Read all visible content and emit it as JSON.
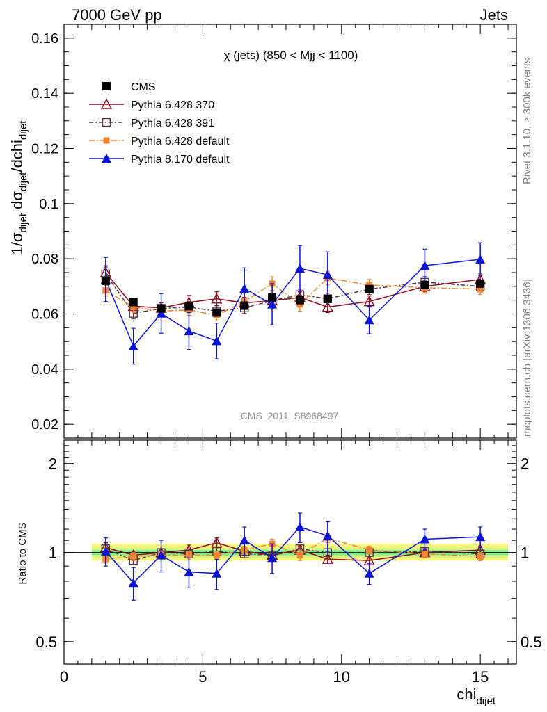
{
  "header": {
    "energy_label": "7000 GeV pp",
    "process_label": "Jets",
    "side_rivet": "Rivet 3.1.10, ≥ 300k events",
    "side_mcplots": "mcplots.cern.ch [arXiv:1306.3436]"
  },
  "chart_data": [
    {
      "type": "line",
      "panel": "main",
      "title": "χ (jets) (850 < Mjj < 1100)",
      "watermark": "CMS_2011_S8968497",
      "ylabel": {
        "main": "1/σ",
        "sub1": "dijet",
        "mid": " dσ",
        "sub2": "dijet",
        "mid2": "/dchi",
        "sub3": "dijet"
      },
      "xlim": [
        0,
        16.3
      ],
      "ylim": [
        0.015,
        0.165
      ],
      "yticks": [
        0.02,
        0.04,
        0.06,
        0.08,
        0.1,
        0.12,
        0.14,
        0.16
      ],
      "ytick_labels": [
        "0.02",
        "0.04",
        "0.06",
        "0.08",
        "0.1",
        "0.12",
        "0.14",
        "0.16"
      ],
      "x": [
        1.5,
        2.5,
        3.5,
        4.5,
        5.5,
        6.5,
        7.5,
        8.5,
        9.5,
        11,
        13,
        15
      ],
      "series": [
        {
          "name": "CMS",
          "color": "#000000",
          "marker": "square-filled",
          "dash": "none",
          "values": [
            0.072,
            0.0643,
            0.062,
            0.0628,
            0.0605,
            0.063,
            0.066,
            0.065,
            0.0655,
            0.069,
            0.0705,
            0.071
          ],
          "errors": [
            0.001,
            0.001,
            0.001,
            0.001,
            0.001,
            0.001,
            0.001,
            0.001,
            0.001,
            0.001,
            0.001,
            0.001
          ]
        },
        {
          "name": "Pythia 6.428 370",
          "color": "#8b0a1a",
          "marker": "triangle-open",
          "dash": "none",
          "values": [
            0.075,
            0.0628,
            0.0622,
            0.0642,
            0.0655,
            0.064,
            0.0648,
            0.066,
            0.0625,
            0.0645,
            0.07,
            0.0725
          ],
          "errors": [
            0.0025,
            0.002,
            0.002,
            0.0025,
            0.0025,
            0.002,
            0.002,
            0.002,
            0.002,
            0.002,
            0.002,
            0.002
          ]
        },
        {
          "name": "Pythia 6.428 391",
          "color": "#5a3040",
          "marker": "square-open",
          "dash": "6,3,2,3",
          "values": [
            0.0745,
            0.0602,
            0.062,
            0.0625,
            0.061,
            0.0622,
            0.0648,
            0.067,
            0.0655,
            0.069,
            0.0715,
            0.07
          ],
          "errors": [
            0.0025,
            0.002,
            0.002,
            0.002,
            0.002,
            0.002,
            0.002,
            0.002,
            0.002,
            0.002,
            0.002,
            0.002
          ]
        },
        {
          "name": "Pythia 6.428 default",
          "color": "#f58432",
          "marker": "square-filled-small",
          "dash": "8,3,2,3",
          "values": [
            0.0685,
            0.0625,
            0.061,
            0.0615,
            0.0595,
            0.0645,
            0.071,
            0.0635,
            0.073,
            0.0705,
            0.0695,
            0.069
          ],
          "errors": [
            0.002,
            0.002,
            0.002,
            0.002,
            0.002,
            0.002,
            0.0025,
            0.0025,
            0.0025,
            0.002,
            0.002,
            0.002
          ]
        },
        {
          "name": "Pythia 8.170 default",
          "color": "#0a14d6",
          "marker": "triangle-filled",
          "dash": "none",
          "values": [
            0.0725,
            0.0483,
            0.0602,
            0.0538,
            0.0502,
            0.0692,
            0.0635,
            0.0765,
            0.0742,
            0.0578,
            0.0775,
            0.0798
          ],
          "errors": [
            0.008,
            0.0065,
            0.0072,
            0.0067,
            0.0065,
            0.0075,
            0.0075,
            0.0083,
            0.0083,
            0.005,
            0.006,
            0.006
          ]
        }
      ]
    },
    {
      "type": "line",
      "panel": "ratio",
      "ylabel": "Ratio to CMS",
      "xlabel": "chi",
      "xlabel_sub": "dijet",
      "xlim": [
        0,
        16.3
      ],
      "ylim": [
        0.42,
        2.4
      ],
      "log_y": true,
      "xticks": [
        0,
        5,
        10,
        15
      ],
      "xtick_labels": [
        "0",
        "5",
        "10",
        "15"
      ],
      "yticks": [
        0.5,
        1,
        2
      ],
      "ytick_labels": [
        "0.5",
        "1",
        "2"
      ],
      "band": {
        "x_range": [
          1,
          16
        ],
        "inner": [
          0.98,
          1.02
        ],
        "middle": [
          0.96,
          1.04
        ],
        "outer": [
          0.94,
          1.07
        ],
        "colors": [
          "#7ff08a",
          "#d8f585",
          "#f6f67a"
        ]
      },
      "x": [
        1.5,
        2.5,
        3.5,
        4.5,
        5.5,
        6.5,
        7.5,
        8.5,
        9.5,
        11,
        13,
        15
      ],
      "series": [
        {
          "name": "Pythia 6.428 370",
          "color": "#8b0a1a",
          "marker": "triangle-open",
          "dash": "none",
          "values": [
            1.04,
            0.98,
            1.0,
            1.02,
            1.08,
            1.01,
            0.98,
            1.02,
            0.95,
            0.94,
            1.0,
            1.02
          ],
          "errors": [
            0.04,
            0.03,
            0.03,
            0.04,
            0.04,
            0.03,
            0.03,
            0.03,
            0.03,
            0.03,
            0.03,
            0.03
          ]
        },
        {
          "name": "Pythia 6.428 391",
          "color": "#5a3040",
          "marker": "square-open",
          "dash": "6,3,2,3",
          "values": [
            1.03,
            0.94,
            1.0,
            0.99,
            1.01,
            0.99,
            0.98,
            1.03,
            1.0,
            1.0,
            1.01,
            0.99
          ],
          "errors": [
            0.04,
            0.03,
            0.03,
            0.03,
            0.03,
            0.03,
            0.03,
            0.03,
            0.03,
            0.03,
            0.03,
            0.03
          ]
        },
        {
          "name": "Pythia 6.428 default",
          "color": "#f58432",
          "marker": "square-filled-small",
          "dash": "8,3,2,3",
          "values": [
            0.95,
            0.97,
            0.98,
            0.98,
            0.98,
            1.02,
            1.07,
            0.98,
            1.12,
            1.02,
            0.99,
            0.97
          ],
          "errors": [
            0.03,
            0.03,
            0.03,
            0.03,
            0.03,
            0.03,
            0.04,
            0.04,
            0.04,
            0.03,
            0.03,
            0.03
          ]
        },
        {
          "name": "Pythia 8.170 default",
          "color": "#0a14d6",
          "marker": "triangle-filled",
          "dash": "none",
          "values": [
            1.01,
            0.79,
            0.98,
            0.86,
            0.85,
            1.1,
            0.96,
            1.22,
            1.14,
            0.85,
            1.11,
            1.13
          ],
          "errors": [
            0.11,
            0.1,
            0.12,
            0.1,
            0.1,
            0.12,
            0.11,
            0.14,
            0.13,
            0.07,
            0.09,
            0.09
          ]
        }
      ]
    }
  ]
}
